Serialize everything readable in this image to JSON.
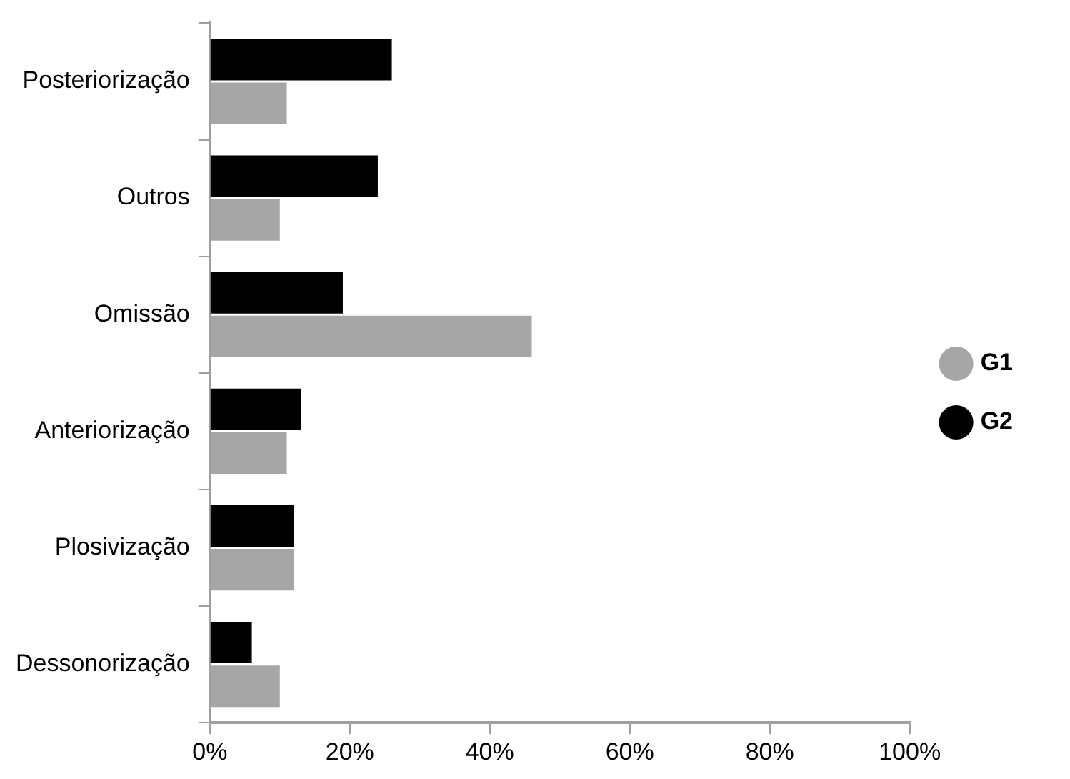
{
  "chart_data": {
    "type": "bar",
    "orientation": "horizontal",
    "categories": [
      "Posteriorização",
      "Outros",
      "Omissão",
      "Anteriorização",
      "Plosivização",
      "Dessonorização"
    ],
    "series": [
      {
        "name": "G1",
        "color": "#a6a6a6",
        "values": [
          11,
          10,
          46,
          11,
          12,
          10
        ]
      },
      {
        "name": "G2",
        "color": "#000000",
        "values": [
          26,
          24,
          19,
          13,
          12,
          6
        ]
      }
    ],
    "xlim": [
      0,
      100
    ],
    "xticks": [
      {
        "value": 0,
        "label": "0%"
      },
      {
        "value": 20,
        "label": "20%"
      },
      {
        "value": 40,
        "label": "40%"
      },
      {
        "value": 60,
        "label": "60%"
      },
      {
        "value": 80,
        "label": "80%"
      },
      {
        "value": 100,
        "label": "100%"
      }
    ],
    "grid": false,
    "legend": "right"
  }
}
